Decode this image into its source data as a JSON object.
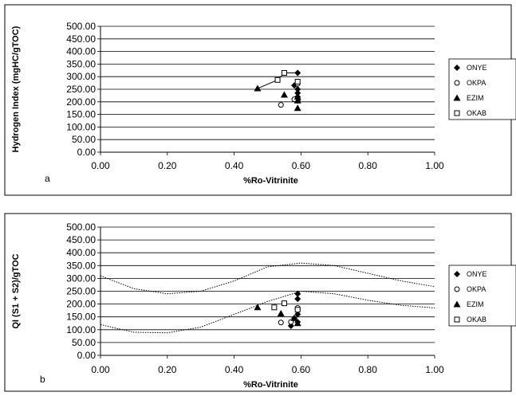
{
  "chart_data": [
    {
      "type": "scatter",
      "panel_label": "a",
      "xlabel": "%Ro-Vitrinite",
      "ylabel": "Hydrogen Index (mgHC/gTOC)",
      "xlim": [
        0,
        1
      ],
      "ylim": [
        0,
        500
      ],
      "x_ticks": [
        "0.00",
        "0.20",
        "0.40",
        "0.60",
        "0.80",
        "1.00"
      ],
      "y_ticks": [
        "0.00",
        "50.00",
        "100.00",
        "150.00",
        "200.00",
        "250.00",
        "300.00",
        "350.00",
        "400.00",
        "450.00",
        "500.00"
      ],
      "grid": "horizontal",
      "legend_position": "right",
      "series": [
        {
          "name": "ONYE",
          "marker": "diamond",
          "points": [
            [
              0.59,
              315
            ],
            [
              0.58,
              265
            ],
            [
              0.59,
              250
            ],
            [
              0.59,
              235
            ],
            [
              0.59,
              220
            ],
            [
              0.59,
              205
            ]
          ]
        },
        {
          "name": "OKPA",
          "marker": "circle-open",
          "points": [
            [
              0.54,
              188
            ],
            [
              0.58,
              210
            ],
            [
              0.59,
              272
            ]
          ]
        },
        {
          "name": "EZIM",
          "marker": "triangle",
          "points": [
            [
              0.47,
              253
            ],
            [
              0.55,
              228
            ],
            [
              0.59,
              175
            ],
            [
              0.59,
              205
            ],
            [
              0.59,
              220
            ]
          ]
        },
        {
          "name": "OKAB",
          "marker": "square-open",
          "points": [
            [
              0.53,
              287
            ],
            [
              0.55,
              315
            ],
            [
              0.59,
              280
            ]
          ]
        }
      ],
      "trend_line": [
        [
          0.47,
          253
        ],
        [
          0.53,
          287
        ],
        [
          0.55,
          315
        ],
        [
          0.59,
          315
        ]
      ]
    },
    {
      "type": "scatter",
      "panel_label": "b",
      "xlabel": "%Ro-Vitrinite",
      "ylabel": "QI (S1 + S2)/gTOC",
      "xlim": [
        0,
        1
      ],
      "ylim": [
        0,
        500
      ],
      "x_ticks": [
        "0.00",
        "0.20",
        "0.40",
        "0.60",
        "0.80",
        "1.00"
      ],
      "y_ticks": [
        "0.00",
        "50.00",
        "100.00",
        "150.00",
        "200.00",
        "250.00",
        "300.00",
        "350.00",
        "400.00",
        "450.00",
        "500.00"
      ],
      "grid": "horizontal",
      "legend_position": "right",
      "series": [
        {
          "name": "ONYE",
          "marker": "diamond",
          "points": [
            [
              0.59,
              240
            ],
            [
              0.59,
              220
            ],
            [
              0.59,
              180
            ],
            [
              0.59,
              160
            ],
            [
              0.58,
              145
            ],
            [
              0.59,
              130
            ],
            [
              0.57,
              115
            ]
          ]
        },
        {
          "name": "OKPA",
          "marker": "circle-open",
          "points": [
            [
              0.54,
              128
            ],
            [
              0.57,
              130
            ],
            [
              0.59,
              185
            ]
          ]
        },
        {
          "name": "EZIM",
          "marker": "triangle",
          "points": [
            [
              0.47,
              187
            ],
            [
              0.54,
              163
            ],
            [
              0.58,
              145
            ],
            [
              0.59,
              125
            ]
          ]
        },
        {
          "name": "OKAB",
          "marker": "square-open",
          "points": [
            [
              0.52,
              187
            ],
            [
              0.55,
              203
            ],
            [
              0.59,
              178
            ]
          ]
        }
      ],
      "envelope_upper": [
        [
          0.0,
          310
        ],
        [
          0.1,
          260
        ],
        [
          0.2,
          240
        ],
        [
          0.3,
          250
        ],
        [
          0.4,
          290
        ],
        [
          0.5,
          345
        ],
        [
          0.6,
          360
        ],
        [
          0.7,
          350
        ],
        [
          0.8,
          320
        ],
        [
          0.9,
          290
        ],
        [
          1.0,
          268
        ]
      ],
      "envelope_lower": [
        [
          0.0,
          120
        ],
        [
          0.1,
          90
        ],
        [
          0.2,
          88
        ],
        [
          0.3,
          110
        ],
        [
          0.4,
          160
        ],
        [
          0.5,
          210
        ],
        [
          0.6,
          250
        ],
        [
          0.7,
          240
        ],
        [
          0.8,
          215
        ],
        [
          0.9,
          195
        ],
        [
          1.0,
          185
        ]
      ]
    }
  ]
}
